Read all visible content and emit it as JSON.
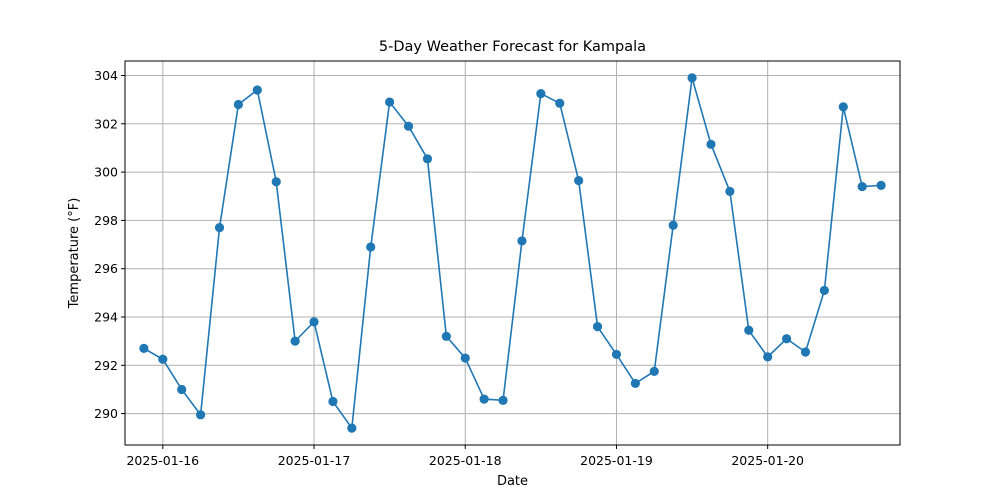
{
  "chart_data": {
    "type": "line",
    "title": "5-Day Weather Forecast for Kampala",
    "xlabel": "Date",
    "ylabel": "Temperature (°F)",
    "grid": true,
    "color": "#1f77b4",
    "xlim": [
      "2025-01-15 18:00",
      "2025-01-20 21:00"
    ],
    "ylim": [
      288.7,
      304.6
    ],
    "x_ticks": [
      "2025-01-16",
      "2025-01-17",
      "2025-01-18",
      "2025-01-19",
      "2025-01-20"
    ],
    "y_ticks": [
      290,
      292,
      294,
      296,
      298,
      300,
      302,
      304
    ],
    "x": [
      "2025-01-15 21:00",
      "2025-01-16 00:00",
      "2025-01-16 03:00",
      "2025-01-16 06:00",
      "2025-01-16 09:00",
      "2025-01-16 12:00",
      "2025-01-16 15:00",
      "2025-01-16 18:00",
      "2025-01-16 21:00",
      "2025-01-17 00:00",
      "2025-01-17 03:00",
      "2025-01-17 06:00",
      "2025-01-17 09:00",
      "2025-01-17 12:00",
      "2025-01-17 15:00",
      "2025-01-17 18:00",
      "2025-01-17 21:00",
      "2025-01-18 00:00",
      "2025-01-18 03:00",
      "2025-01-18 06:00",
      "2025-01-18 09:00",
      "2025-01-18 12:00",
      "2025-01-18 15:00",
      "2025-01-18 18:00",
      "2025-01-18 21:00",
      "2025-01-19 00:00",
      "2025-01-19 03:00",
      "2025-01-19 06:00",
      "2025-01-19 09:00",
      "2025-01-19 12:00",
      "2025-01-19 15:00",
      "2025-01-19 18:00",
      "2025-01-19 21:00",
      "2025-01-20 00:00",
      "2025-01-20 03:00",
      "2025-01-20 06:00",
      "2025-01-20 09:00",
      "2025-01-20 12:00",
      "2025-01-20 15:00",
      "2025-01-20 18:00"
    ],
    "values": [
      292.7,
      292.25,
      291.0,
      289.95,
      297.7,
      302.8,
      303.4,
      299.6,
      293.0,
      293.8,
      290.5,
      289.4,
      296.9,
      302.9,
      301.9,
      300.55,
      293.2,
      292.3,
      290.6,
      290.55,
      297.15,
      303.25,
      302.85,
      299.65,
      293.6,
      292.45,
      291.25,
      291.75,
      297.8,
      303.9,
      301.15,
      299.2,
      293.45,
      292.35,
      293.1,
      292.55,
      295.1,
      302.7,
      299.4,
      299.45
    ]
  }
}
